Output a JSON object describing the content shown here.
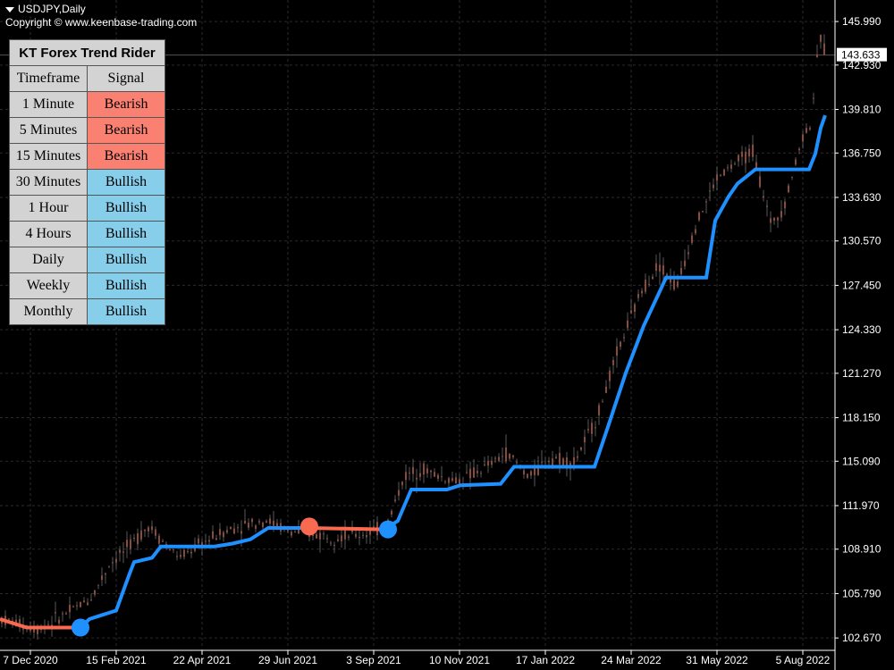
{
  "header": {
    "symbol": "USDJPY,Daily",
    "copyright": "Copyright © www.keenbase-trading.com"
  },
  "panel": {
    "title": "KT Forex Trend Rider",
    "col_timeframe": "Timeframe",
    "col_signal": "Signal",
    "rows": [
      {
        "timeframe": "1 Minute",
        "signal": "Bearish"
      },
      {
        "timeframe": "5 Minutes",
        "signal": "Bearish"
      },
      {
        "timeframe": "15 Minutes",
        "signal": "Bearish"
      },
      {
        "timeframe": "30 Minutes",
        "signal": "Bullish"
      },
      {
        "timeframe": "1 Hour",
        "signal": "Bullish"
      },
      {
        "timeframe": "4 Hours",
        "signal": "Bullish"
      },
      {
        "timeframe": "Daily",
        "signal": "Bullish"
      },
      {
        "timeframe": "Weekly",
        "signal": "Bullish"
      },
      {
        "timeframe": "Monthly",
        "signal": "Bullish"
      }
    ],
    "colors": {
      "Bearish": "#fa8072",
      "Bullish": "#87ceeb"
    }
  },
  "colors": {
    "background": "#000000",
    "grid": "#2b2b2b",
    "candle": "#8b4a3c",
    "candle_wick": "#a0a0a0",
    "bull_line": "#1e90ff",
    "bear_line": "#fa6a50",
    "axis_text": "#ffffff"
  },
  "chart_data": {
    "type": "line",
    "x_ticks": [
      "7 Dec 2020",
      "15 Feb 2021",
      "22 Apr 2021",
      "29 Jun 2021",
      "3 Sep 2021",
      "10 Nov 2021",
      "17 Jan 2022",
      "24 Mar 2022",
      "31 May 2022",
      "5 Aug 2022"
    ],
    "y_ticks": [
      "145.990",
      "142.930",
      "139.810",
      "136.750",
      "133.630",
      "130.570",
      "127.450",
      "124.330",
      "121.270",
      "118.150",
      "115.090",
      "111.970",
      "108.910",
      "105.790",
      "102.670"
    ],
    "ylim": [
      101.8,
      147.0
    ],
    "current_price": "143.633",
    "grid": true,
    "candles": {
      "x": [
        0,
        4,
        8,
        12,
        16,
        20,
        24,
        28,
        32,
        36,
        40,
        44,
        48,
        52,
        56,
        60,
        64,
        68,
        72,
        76,
        80,
        84,
        88,
        92,
        96,
        100,
        104,
        108,
        112,
        116,
        120,
        124,
        128,
        132,
        136,
        140,
        144,
        148,
        152,
        156,
        160,
        164,
        168,
        172,
        176,
        180,
        184,
        188,
        192,
        196,
        200,
        204,
        208,
        212,
        216,
        220,
        224,
        228,
        232,
        236,
        240,
        244,
        248,
        252,
        256,
        260,
        264,
        268,
        272,
        276,
        280,
        284,
        288,
        292,
        296,
        300,
        304,
        308,
        312,
        316,
        320,
        324,
        328,
        332,
        336,
        340,
        344,
        348,
        352,
        356,
        360,
        364,
        368,
        372,
        376,
        380,
        384,
        388,
        392,
        396,
        400,
        404,
        408,
        412,
        416,
        420,
        424,
        428,
        432,
        436,
        440,
        444,
        448,
        452,
        456,
        460,
        464,
        468,
        472,
        476,
        480,
        484,
        488,
        492,
        496,
        500,
        504,
        508,
        512,
        516,
        520,
        524,
        528,
        532,
        536,
        540,
        544,
        548,
        552,
        556,
        560,
        564,
        568,
        572,
        576,
        580,
        584,
        588,
        592,
        596,
        600,
        604,
        608,
        612,
        616,
        620,
        624,
        628,
        632,
        636,
        640,
        644,
        648,
        652,
        656,
        660,
        664,
        668,
        672,
        676,
        680,
        684,
        688,
        692,
        696,
        700,
        704,
        708,
        712,
        716,
        720,
        724,
        728,
        732,
        736,
        740,
        744,
        748,
        752,
        756,
        760,
        764,
        768,
        772,
        776,
        780,
        784,
        788,
        792,
        796,
        800,
        804,
        808,
        812,
        816,
        820,
        824,
        828,
        832,
        836,
        840,
        844,
        848,
        852,
        856,
        860,
        864,
        868,
        872,
        876,
        880,
        884,
        888,
        892,
        896,
        900,
        904,
        908,
        912,
        916,
        920
      ],
      "note": "x values are bar indices (0-920), y values are price"
    },
    "series": [
      {
        "name": "Bullish",
        "color": "#1e90ff"
      },
      {
        "name": "Bearish",
        "color": "#fa6a50"
      }
    ]
  }
}
